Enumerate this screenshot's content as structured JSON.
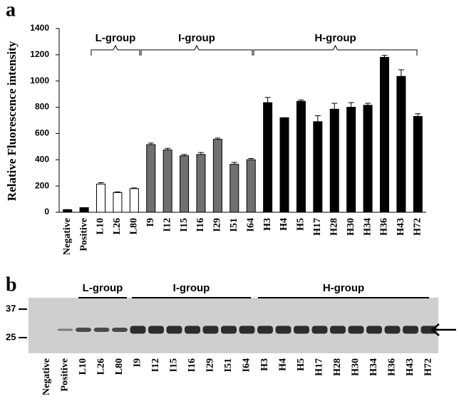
{
  "chart_data": {
    "type": "bar",
    "y_label": "Relative Fluorescence intensity",
    "categories": [
      "Negative",
      "Positive",
      "L10",
      "L26",
      "L80",
      "I9",
      "I12",
      "I15",
      "I16",
      "I29",
      "I51",
      "I64",
      "H3",
      "H4",
      "H5",
      "H17",
      "H28",
      "H30",
      "H34",
      "H36",
      "H43",
      "H72"
    ],
    "values": [
      20,
      35,
      215,
      150,
      180,
      515,
      475,
      430,
      440,
      555,
      365,
      400,
      835,
      720,
      845,
      690,
      785,
      800,
      815,
      1180,
      1035,
      730
    ],
    "errors": [
      0,
      0,
      10,
      5,
      5,
      12,
      12,
      10,
      15,
      10,
      15,
      10,
      40,
      0,
      10,
      45,
      45,
      35,
      15,
      15,
      50,
      20
    ],
    "colors": [
      "#000000",
      "#000000",
      "#ffffff",
      "#ffffff",
      "#ffffff",
      "#707070",
      "#707070",
      "#707070",
      "#707070",
      "#707070",
      "#707070",
      "#707070",
      "#000000",
      "#000000",
      "#000000",
      "#000000",
      "#000000",
      "#000000",
      "#000000",
      "#000000",
      "#000000",
      "#000000"
    ],
    "ylim": [
      0,
      1400
    ],
    "yticks": [
      0,
      200,
      400,
      600,
      800,
      1000,
      1200,
      1400
    ],
    "grid": false,
    "groups": [
      "L-group",
      "I-group",
      "H-group"
    ]
  },
  "panels": [
    "a",
    "b"
  ],
  "blot": {
    "markers": [
      "37",
      "25"
    ],
    "groups": [
      "L-group",
      "I-group",
      "H-group"
    ]
  }
}
